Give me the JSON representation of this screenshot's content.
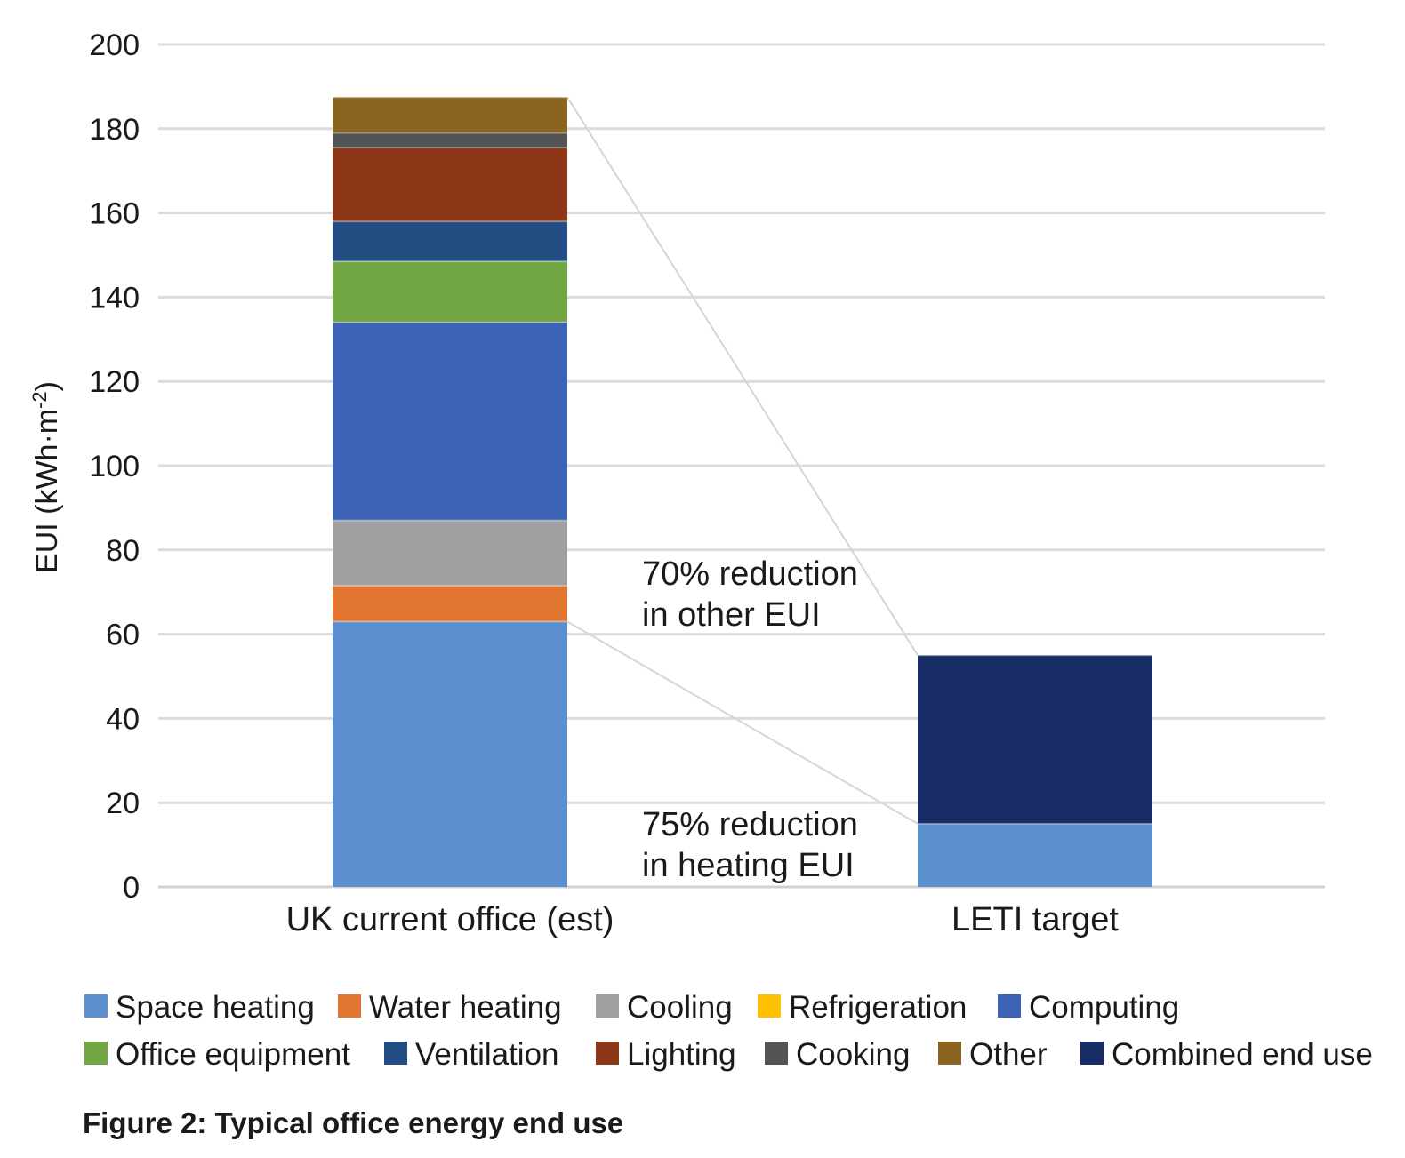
{
  "chart_data": {
    "type": "bar",
    "stacked": true,
    "categories": [
      "UK current office (est)",
      "LETI target"
    ],
    "ylabel": "EUI (kWh·m",
    "ylabel_sup": "-2",
    "ylabel_close": ")",
    "ylim": [
      0,
      200
    ],
    "yticks": [
      0,
      20,
      40,
      60,
      80,
      100,
      120,
      140,
      160,
      180,
      200
    ],
    "grid": true,
    "legend_position": "bottom",
    "series": [
      {
        "name": "Space heating",
        "color": "#5B8FCD",
        "values": [
          63,
          15
        ]
      },
      {
        "name": "Water heating",
        "color": "#E27630",
        "values": [
          8.5,
          0
        ]
      },
      {
        "name": "Cooling",
        "color": "#A0A0A0",
        "values": [
          15.5,
          0
        ]
      },
      {
        "name": "Refrigeration",
        "color": "#FFC000",
        "values": [
          0,
          0
        ]
      },
      {
        "name": "Computing",
        "color": "#3C63B5",
        "values": [
          47,
          0
        ]
      },
      {
        "name": "Office equipment",
        "color": "#70A644",
        "values": [
          14.5,
          0
        ]
      },
      {
        "name": "Ventilation",
        "color": "#234C82",
        "values": [
          9.5,
          0
        ]
      },
      {
        "name": "Lighting",
        "color": "#8B3718",
        "values": [
          17.5,
          0
        ]
      },
      {
        "name": "Cooking",
        "color": "#545454",
        "values": [
          3.5,
          0
        ]
      },
      {
        "name": "Other",
        "color": "#8A6522",
        "values": [
          8.5,
          0
        ]
      },
      {
        "name": "Combined end use",
        "color": "#182C66",
        "values": [
          0,
          40
        ]
      }
    ],
    "annotations": [
      {
        "lines": [
          "70% reduction",
          "in other EUI"
        ]
      },
      {
        "lines": [
          "75% reduction",
          "in heating EUI"
        ]
      }
    ],
    "caption": "Figure 2: Typical office energy end use"
  }
}
